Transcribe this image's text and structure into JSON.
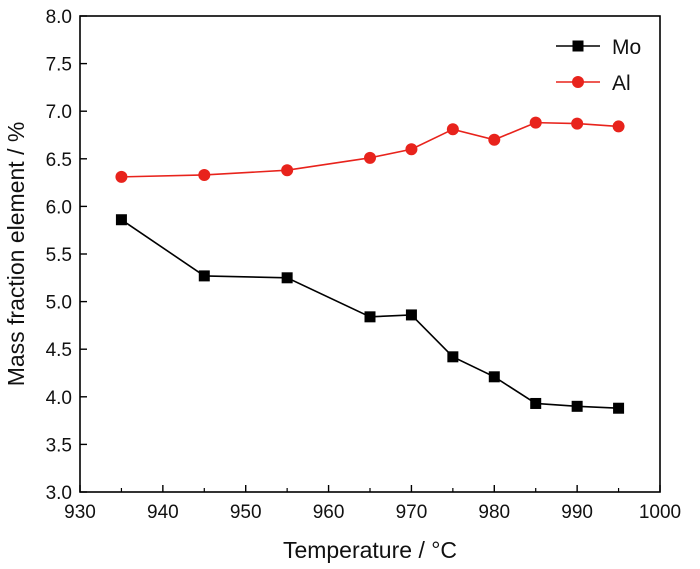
{
  "chart_data": {
    "type": "line",
    "title": "",
    "xlabel": "Temperature / °C",
    "ylabel": "Mass fraction element / %",
    "xlim": [
      930,
      1000
    ],
    "ylim": [
      3.0,
      8.0
    ],
    "x_ticks": [
      930,
      940,
      950,
      960,
      970,
      980,
      990,
      1000
    ],
    "y_ticks": [
      "3.0",
      "3.5",
      "4.0",
      "4.5",
      "5.0",
      "5.5",
      "6.0",
      "6.5",
      "7.0",
      "7.5",
      "8.0"
    ],
    "x": [
      935,
      945,
      955,
      965,
      970,
      975,
      980,
      985,
      990,
      995
    ],
    "series": [
      {
        "name": "Mo",
        "color": "#000000",
        "marker": "square",
        "values": [
          5.86,
          5.27,
          5.25,
          4.84,
          4.86,
          4.42,
          4.21,
          3.93,
          3.9,
          3.88
        ]
      },
      {
        "name": "Al",
        "color": "#e8231c",
        "marker": "circle",
        "values": [
          6.31,
          6.33,
          6.38,
          6.51,
          6.6,
          6.81,
          6.7,
          6.88,
          6.87,
          6.84
        ]
      }
    ],
    "legend_position": "top-right",
    "grid": false
  }
}
